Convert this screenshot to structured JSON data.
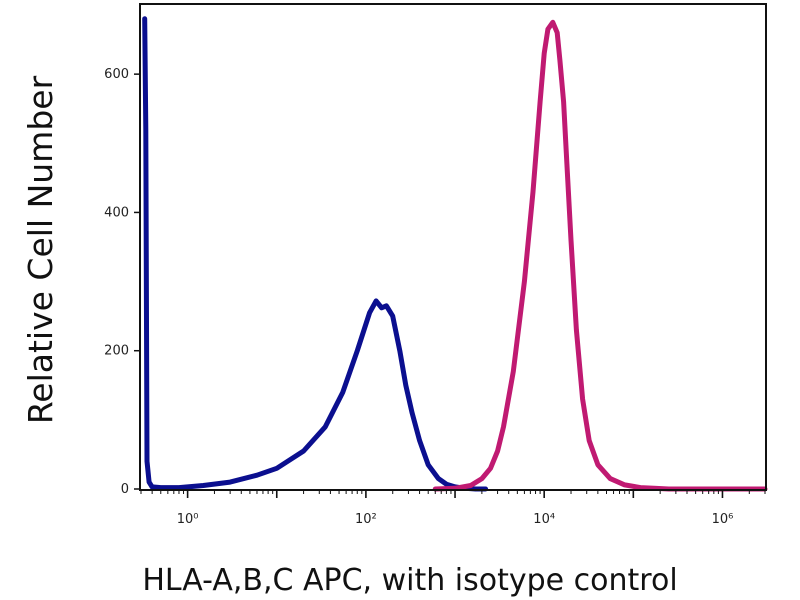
{
  "chart_data": {
    "type": "line",
    "title": "",
    "xlabel": "HLA-A,B,C APC, with isotype control",
    "ylabel": "Relative Cell Number",
    "x_scale": "log",
    "xlim": [
      0.3,
      3000000
    ],
    "ylim": [
      0,
      700
    ],
    "x_ticks": [
      {
        "value": 1,
        "label": "10⁰"
      },
      {
        "value": 100,
        "label": "10²"
      },
      {
        "value": 10000,
        "label": "10⁴"
      },
      {
        "value": 1000000,
        "label": "10⁶"
      }
    ],
    "y_ticks": [
      {
        "value": 0,
        "label": "0"
      },
      {
        "value": 200,
        "label": "200"
      },
      {
        "value": 400,
        "label": "400"
      },
      {
        "value": 600,
        "label": "600"
      }
    ],
    "grid": false,
    "legend": "none",
    "series": [
      {
        "color": "#0b0f8f",
        "x": [
          0.33,
          0.34,
          0.35,
          0.37,
          0.4,
          0.5,
          0.8,
          1.5,
          3,
          6,
          10,
          20,
          35,
          55,
          80,
          110,
          130,
          150,
          170,
          200,
          240,
          280,
          330,
          400,
          500,
          650,
          800,
          1000,
          1300,
          1700,
          2200
        ],
        "values": [
          680,
          520,
          40,
          10,
          3,
          2,
          2,
          5,
          10,
          20,
          30,
          55,
          90,
          140,
          200,
          255,
          272,
          262,
          265,
          250,
          200,
          150,
          110,
          70,
          35,
          15,
          7,
          3,
          1,
          0,
          0
        ]
      },
      {
        "color": "#c01a72",
        "x": [
          600,
          1000,
          1500,
          2000,
          2500,
          3000,
          3500,
          4500,
          6000,
          7500,
          9000,
          10000,
          11000,
          12500,
          14000,
          15000,
          16500,
          18000,
          20000,
          23000,
          27000,
          32000,
          40000,
          55000,
          80000,
          120000,
          170000,
          250000,
          400000,
          1000000,
          3000000
        ],
        "values": [
          0,
          1,
          5,
          15,
          30,
          55,
          90,
          170,
          300,
          430,
          560,
          630,
          665,
          675,
          660,
          620,
          560,
          470,
          360,
          230,
          130,
          70,
          35,
          15,
          6,
          2,
          1,
          0,
          0,
          0,
          0
        ]
      }
    ]
  }
}
